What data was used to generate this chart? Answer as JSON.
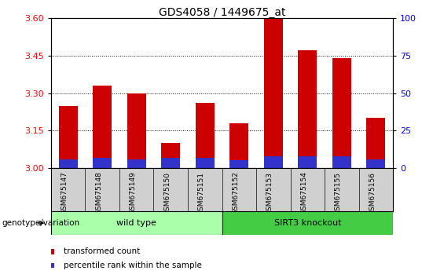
{
  "title": "GDS4058 / 1449675_at",
  "samples": [
    "GSM675147",
    "GSM675148",
    "GSM675149",
    "GSM675150",
    "GSM675151",
    "GSM675152",
    "GSM675153",
    "GSM675154",
    "GSM675155",
    "GSM675156"
  ],
  "transformed_counts": [
    3.25,
    3.33,
    3.3,
    3.1,
    3.26,
    3.18,
    3.6,
    3.47,
    3.44,
    3.2
  ],
  "percentile_ranks_right": [
    6.0,
    7.0,
    6.0,
    7.0,
    7.0,
    5.5,
    8.0,
    8.0,
    8.0,
    6.0
  ],
  "ylim_left": [
    3.0,
    3.6
  ],
  "ylim_right": [
    0,
    100
  ],
  "yticks_left": [
    3.0,
    3.15,
    3.3,
    3.45,
    3.6
  ],
  "yticks_right": [
    0,
    25,
    50,
    75,
    100
  ],
  "bar_base": 3.0,
  "red_color": "#cc0000",
  "blue_color": "#3333cc",
  "wt_color_light": "#ccffcc",
  "wt_color": "#aaffaa",
  "ko_color": "#44cc44",
  "sample_box_color": "#d0d0d0",
  "groups": [
    {
      "label": "wild type",
      "start": 0,
      "end": 4
    },
    {
      "label": "SIRT3 knockout",
      "start": 5,
      "end": 9
    }
  ],
  "group_label": "genotype/variation",
  "legend_items": [
    {
      "label": "transformed count",
      "color": "#cc0000"
    },
    {
      "label": "percentile rank within the sample",
      "color": "#3333cc"
    }
  ],
  "bar_width": 0.55
}
